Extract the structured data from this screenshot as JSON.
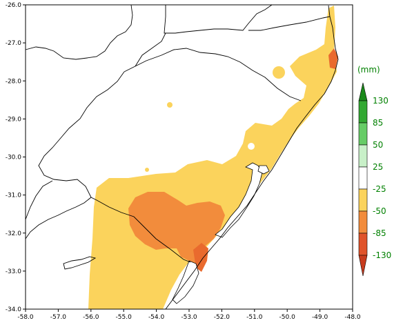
{
  "map": {
    "x_ticks": [
      "-58.0",
      "-57.0",
      "-56.0",
      "-55.0",
      "-54.0",
      "-53.0",
      "-52.0",
      "-51.0",
      "-50.0",
      "-49.0",
      "-48.0"
    ],
    "y_ticks": [
      "-26.0",
      "-27.0",
      "-28.0",
      "-29.0",
      "-30.0",
      "-31.0",
      "-32.0",
      "-33.0",
      "-34.0"
    ],
    "lon_range": [
      -58.0,
      -48.0
    ],
    "lat_range": [
      -34.0,
      -26.0
    ]
  },
  "legend": {
    "unit": "(mm)",
    "labels": [
      "130",
      "85",
      "50",
      "25",
      "-25",
      "-50",
      "-85",
      "-130"
    ],
    "colors": {
      "top_arrow": "#1a8a1a",
      "g85": "#32a832",
      "g50": "#66cc66",
      "g25": "#c8f0c8",
      "neutral": "#ffffff",
      "y25": "#fbd35c",
      "o50": "#f28c3c",
      "r85": "#e0532a",
      "bottom_arrow": "#c83c1e"
    }
  },
  "fill_colors": {
    "light": "#fbd35c",
    "medium": "#f28c3c",
    "strong": "#e96a2e"
  }
}
